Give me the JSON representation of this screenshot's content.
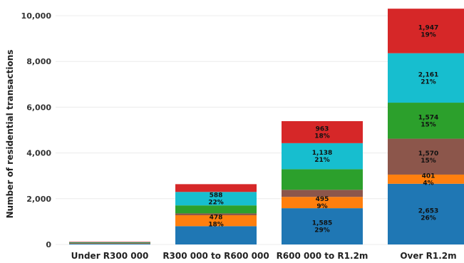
{
  "chart_data": {
    "type": "bar",
    "stacked": true,
    "title": "",
    "xlabel": "",
    "ylabel": "Number of residential transactions",
    "ylim": [
      0,
      10500
    ],
    "yticks": [
      0,
      2000,
      4000,
      6000,
      8000,
      10000
    ],
    "ytick_labels": [
      "0",
      "2,000",
      "4,000",
      "6,000",
      "8,000",
      "10,000"
    ],
    "grid": true,
    "legend": "none",
    "categories": [
      "Under R300 000",
      "R300 000 to R600 000",
      "R600 000 to R1.2m",
      "Over R1.2m"
    ],
    "series": [
      {
        "color": "#1f77b4",
        "values": [
          30,
          800,
          1585,
          2653
        ],
        "labels": [
          "",
          "",
          "1,585\n29%",
          "2,653\n26%"
        ]
      },
      {
        "color": "#ff7f0e",
        "values": [
          20,
          478,
          495,
          401
        ],
        "labels": [
          "",
          "478\n18%",
          "495\n9%",
          "401\n4%"
        ]
      },
      {
        "color": "#8c564b",
        "values": [
          10,
          80,
          310,
          1570
        ],
        "labels": [
          "",
          "",
          "",
          "1,570\n15%"
        ]
      },
      {
        "color": "#2ca02c",
        "values": [
          20,
          350,
          900,
          1574
        ],
        "labels": [
          "",
          "",
          "",
          "1,574\n15%"
        ]
      },
      {
        "color": "#17becf",
        "values": [
          20,
          588,
          1138,
          2161
        ],
        "labels": [
          "",
          "588\n22%",
          "1,138\n21%",
          "2,161\n21%"
        ]
      },
      {
        "color": "#d62728",
        "values": [
          20,
          340,
          963,
          1947
        ],
        "labels": [
          "",
          "",
          "963\n18%",
          "1,947\n19%"
        ]
      }
    ]
  }
}
